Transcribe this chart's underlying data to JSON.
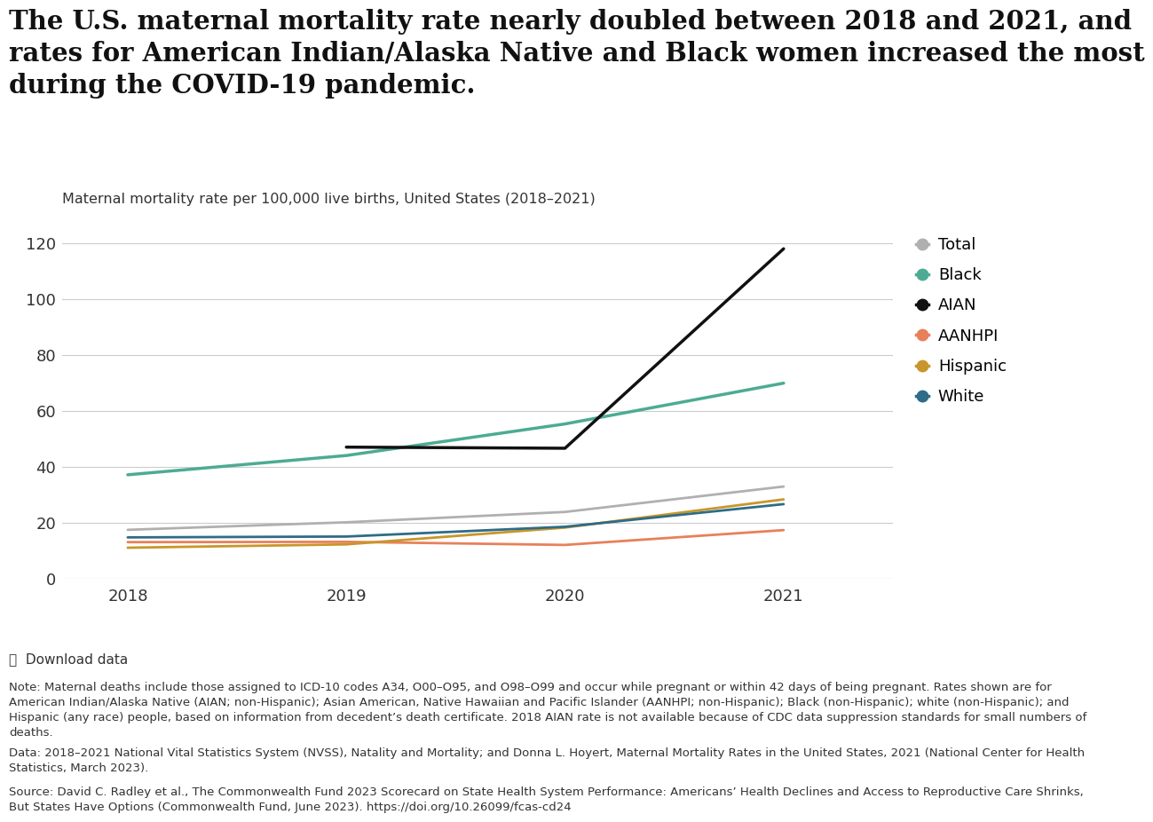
{
  "title": "The U.S. maternal mortality rate nearly doubled between 2018 and 2021, and\nrates for American Indian/Alaska Native and Black women increased the most\nduring the COVID-19 pandemic.",
  "subtitle": "Maternal mortality rate per 100,000 live births, United States (2018–2021)",
  "years": [
    2018,
    2019,
    2020,
    2021
  ],
  "series": {
    "Total": {
      "values": [
        17.4,
        20.1,
        23.8,
        32.9
      ],
      "color": "#b0b0b0",
      "linewidth": 2.0
    },
    "Black": {
      "values": [
        37.1,
        44.0,
        55.3,
        69.9
      ],
      "color": "#4dab93",
      "linewidth": 2.5
    },
    "AIAN": {
      "values": [
        null,
        47.0,
        46.6,
        118.0
      ],
      "color": "#111111",
      "linewidth": 2.5
    },
    "AANHPI": {
      "values": [
        13.0,
        13.1,
        12.0,
        17.3
      ],
      "color": "#e8805a",
      "linewidth": 2.0
    },
    "Hispanic": {
      "values": [
        11.0,
        12.2,
        18.2,
        28.3
      ],
      "color": "#c8962a",
      "linewidth": 2.0
    },
    "White": {
      "values": [
        14.7,
        15.0,
        18.5,
        26.6
      ],
      "color": "#2e6c87",
      "linewidth": 2.0
    }
  },
  "ylim": [
    0,
    130
  ],
  "yticks": [
    0,
    20,
    40,
    60,
    80,
    100,
    120
  ],
  "xticks": [
    2018,
    2019,
    2020,
    2021
  ],
  "legend_order": [
    "Total",
    "Black",
    "AIAN",
    "AANHPI",
    "Hispanic",
    "White"
  ],
  "note_text": "Note: Maternal deaths include those assigned to ICD-10 codes A34, O00–O95, and O98–O99 and occur while pregnant or within 42 days of being pregnant. Rates shown are for\nAmerican Indian/Alaska Native (AIAN; non-Hispanic); Asian American, Native Hawaiian and Pacific Islander (AANHPI; non-Hispanic); Black (non-Hispanic); white (non-Hispanic); and\nHispanic (any race) people, based on information from decedent’s death certificate. 2018 AIAN rate is not available because of CDC data suppression standards for small numbers of\ndeaths.",
  "data_text": "Data: 2018–2021 National Vital Statistics System (NVSS), Natality and Mortality; and Donna L. Hoyert, Maternal Mortality Rates in the United States, 2021 (National Center for Health\nStatistics, March 2023).",
  "source_text": "Source: David C. Radley et al., The Commonwealth Fund 2023 Scorecard on State Health System Performance: Americans’ Health Declines and Access to Reproductive Care Shrinks,\nBut States Have Options (Commonwealth Fund, June 2023). https://doi.org/10.26099/fcas-cd24",
  "download_text": "⤓  Download data",
  "background_color": "#ffffff"
}
